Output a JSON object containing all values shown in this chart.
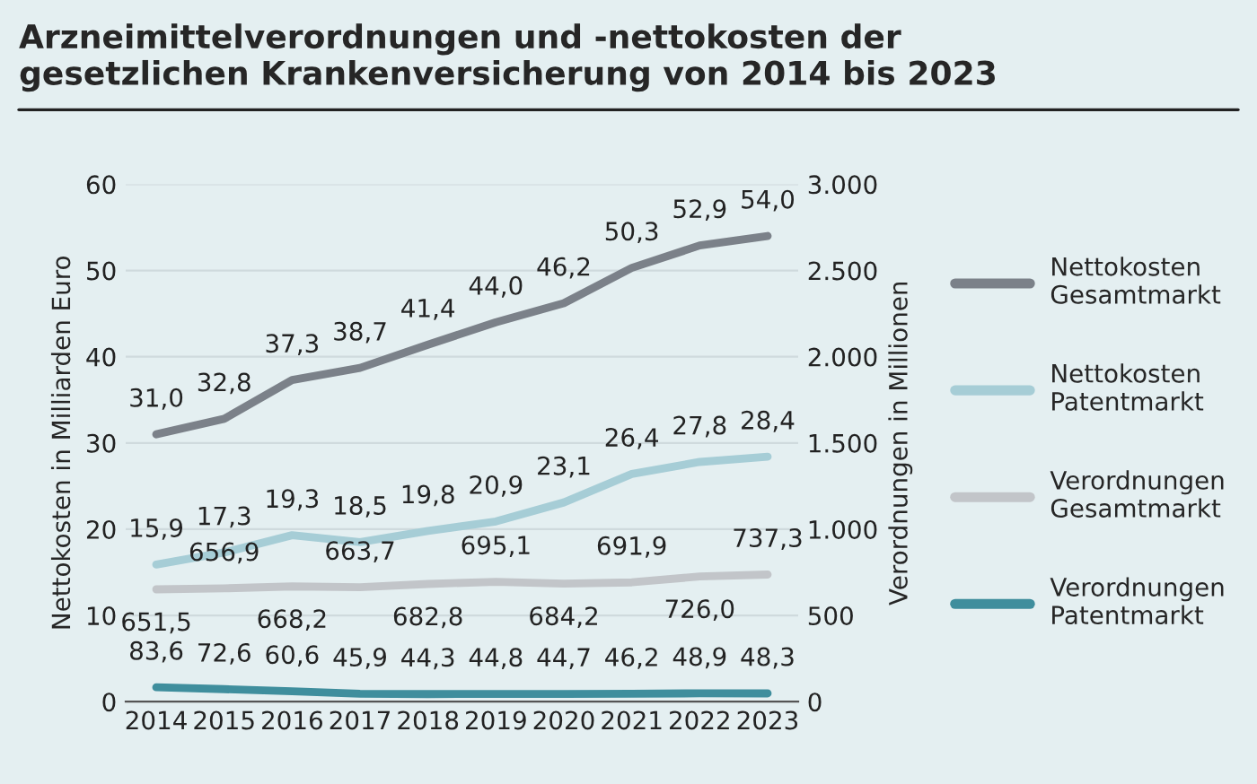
{
  "chart_data": {
    "type": "line",
    "title": "Arzneimittelverordnungen und -nettokosten der\ngesetzlichen Krankenversicherung von 2014 bis 2023",
    "ylabel": "Nettokosten in Milliarden Euro",
    "y2label": "Verordnungen in Millionen",
    "categories": [
      "2014",
      "2015",
      "2016",
      "2017",
      "2018",
      "2019",
      "2020",
      "2021",
      "2022",
      "2023"
    ],
    "ylim": [
      0,
      60
    ],
    "yticks": [
      0,
      10,
      20,
      30,
      40,
      50,
      60
    ],
    "y2lim": [
      0,
      3000
    ],
    "y2ticks": [
      0,
      500,
      {
        "value": 1000,
        "label": "1.000"
      },
      {
        "value": 1500,
        "label": "1.500"
      },
      {
        "value": 2000,
        "label": "2.000"
      },
      {
        "value": 2500,
        "label": "2.500"
      },
      {
        "value": 3000,
        "label": "3.000"
      }
    ],
    "grid": "y",
    "legend": "right",
    "marker": "none",
    "line_style": "solid",
    "series": [
      {
        "name": "Nettokosten\nGesamtmarkt",
        "color": "#7b8189",
        "values": [
          31.0,
          32.8,
          37.3,
          38.7,
          41.4,
          44.0,
          46.2,
          50.3,
          52.9,
          54.0
        ],
        "value_labels": [
          "31,0",
          "32,8",
          "37,3",
          "38,7",
          "41,4",
          "44,0",
          "46,2",
          "50,3",
          "52,9",
          "54,0"
        ]
      },
      {
        "name": "Nettokosten\nPatentmarkt",
        "color": "#a6cdd6",
        "values": [
          15.9,
          17.3,
          19.3,
          18.5,
          19.8,
          20.9,
          23.1,
          26.4,
          27.8,
          28.4
        ],
        "value_labels": [
          "15,9",
          "17,3",
          "19,3",
          "18,5",
          "19,8",
          "20,9",
          "23,1",
          "26,4",
          "27,8",
          "28,4"
        ]
      },
      {
        "name": "Verordnungen\nGesamtmarkt",
        "color": "#c2c5c9",
        "axis": "y2",
        "values": [
          651.5,
          656.9,
          668.2,
          663.7,
          682.8,
          695.1,
          684.2,
          691.9,
          726.0,
          737.3
        ],
        "value_labels": [
          "651,5",
          "656,9",
          "668,2",
          "663,7",
          "682,8",
          "695,1",
          "684,2",
          "691,9",
          "726,0",
          "737,3"
        ]
      },
      {
        "name": "Verordnungen\nPatentmarkt",
        "color": "#3f8e9d",
        "axis": "y2",
        "values": [
          83.6,
          72.6,
          60.6,
          45.9,
          44.3,
          44.8,
          44.7,
          46.2,
          48.9,
          48.3
        ],
        "value_labels": [
          "83,6",
          "72,6",
          "60,6",
          "45,9",
          "44,3",
          "44,8",
          "44,7",
          "46,2",
          "48,9",
          "48,3"
        ]
      }
    ]
  }
}
